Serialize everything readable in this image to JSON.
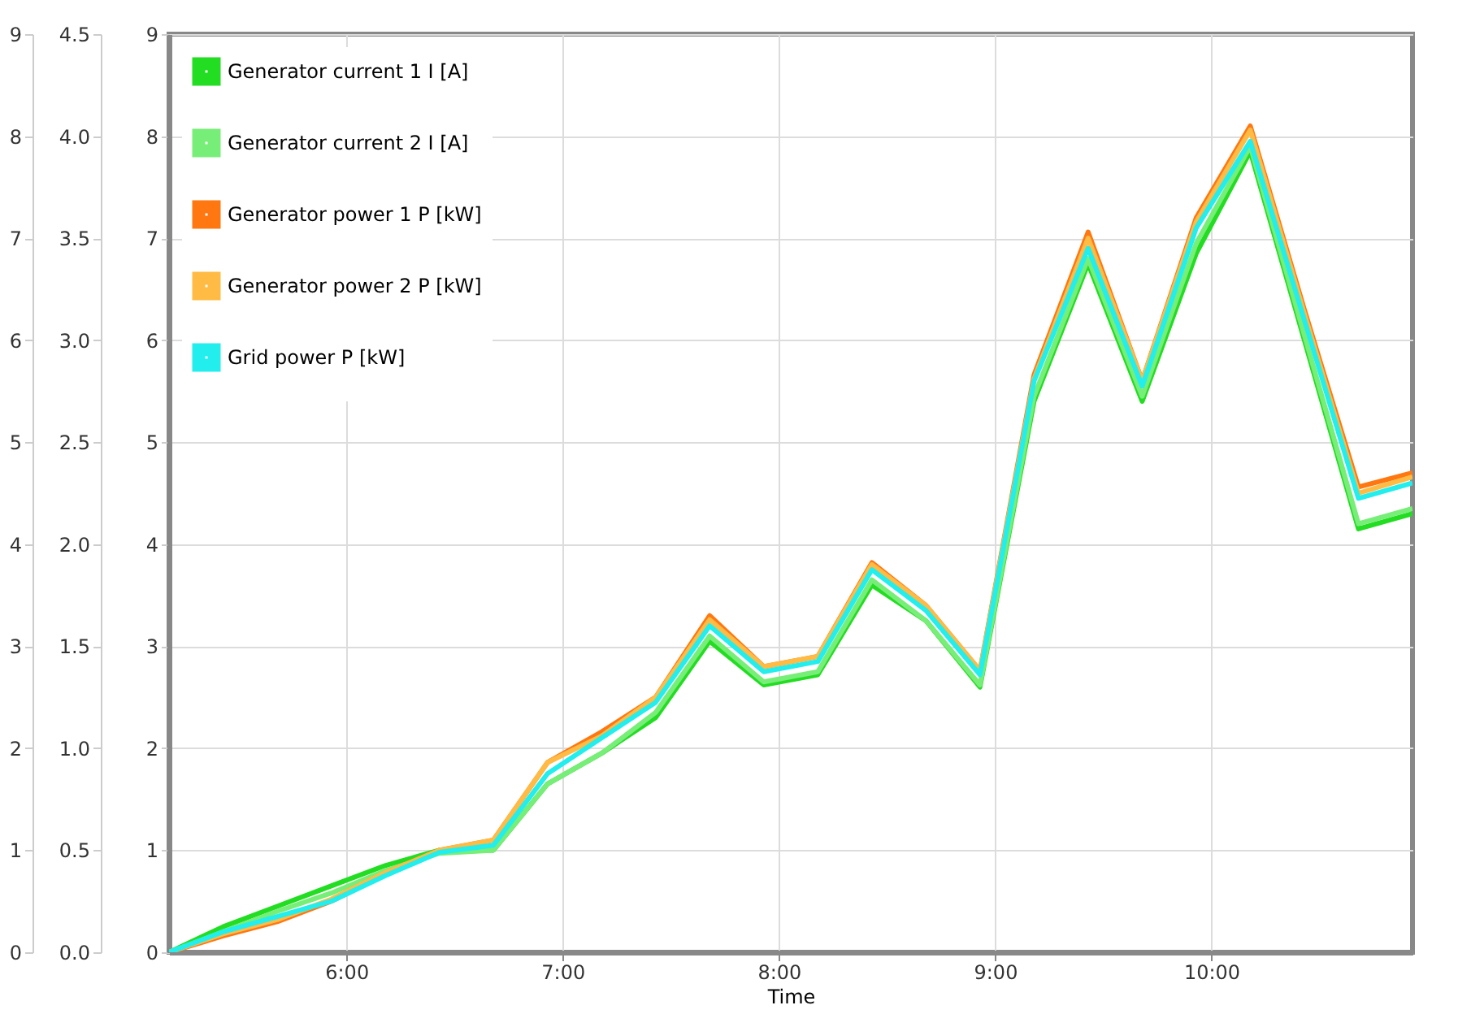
{
  "chart_data": {
    "type": "line",
    "xlabel": "Time",
    "x": [
      5.18,
      5.43,
      5.68,
      5.93,
      6.18,
      6.43,
      6.68,
      6.93,
      7.18,
      7.43,
      7.68,
      7.93,
      8.18,
      8.43,
      8.68,
      8.93,
      9.18,
      9.43,
      9.68,
      9.93,
      10.18,
      10.43,
      10.68,
      10.93
    ],
    "series": [
      {
        "name": "Generator current 1 I [A]",
        "color": "#22dd22",
        "values": [
          0,
          0.25,
          0.45,
          0.65,
          0.85,
          1.0,
          1.0,
          1.65,
          1.95,
          2.3,
          3.05,
          2.62,
          2.72,
          3.6,
          3.25,
          2.6,
          5.4,
          6.75,
          5.4,
          6.85,
          7.85,
          6.0,
          4.15,
          4.3
        ]
      },
      {
        "name": "Generator current 2 I [A]",
        "color": "#77ee77",
        "values": [
          0,
          0.2,
          0.4,
          0.58,
          0.8,
          0.97,
          1.0,
          1.65,
          1.95,
          2.35,
          3.1,
          2.65,
          2.75,
          3.65,
          3.25,
          2.62,
          5.45,
          6.8,
          5.45,
          6.95,
          7.9,
          6.05,
          4.2,
          4.35
        ]
      },
      {
        "name": "Generator power 1 P [kW]",
        "color": "#ff7711",
        "axis": "y2",
        "values": [
          0,
          0.08,
          0.15,
          0.25,
          0.38,
          0.5,
          0.55,
          0.93,
          1.08,
          1.25,
          1.65,
          1.4,
          1.45,
          1.91,
          1.7,
          1.38,
          2.83,
          3.53,
          2.8,
          3.6,
          4.05,
          3.15,
          2.28,
          2.35
        ]
      },
      {
        "name": "Generator power 2 P [kW]",
        "color": "#ffbb44",
        "axis": "y2",
        "values": [
          0,
          0.09,
          0.16,
          0.26,
          0.39,
          0.5,
          0.55,
          0.93,
          1.06,
          1.25,
          1.63,
          1.4,
          1.45,
          1.9,
          1.7,
          1.38,
          2.81,
          3.5,
          2.8,
          3.58,
          4.03,
          3.13,
          2.25,
          2.33
        ]
      },
      {
        "name": "Grid power P [kW]",
        "color": "#22eeee",
        "axis": "y3",
        "values": [
          0,
          0.2,
          0.35,
          0.5,
          0.75,
          0.98,
          1.05,
          1.75,
          2.1,
          2.45,
          3.2,
          2.75,
          2.85,
          3.75,
          3.35,
          2.72,
          5.6,
          6.9,
          5.55,
          7.1,
          7.95,
          6.2,
          4.45,
          4.6
        ]
      }
    ],
    "xlim": [
      5.18,
      10.93
    ],
    "xticks": [
      {
        "value": 6,
        "label": "6:00"
      },
      {
        "value": 7,
        "label": "7:00"
      },
      {
        "value": 8,
        "label": "8:00"
      },
      {
        "value": 9,
        "label": "9:00"
      },
      {
        "value": 10,
        "label": "10:00"
      }
    ],
    "ylim": [
      0,
      9
    ],
    "yticks": [
      0,
      1,
      2,
      3,
      4,
      5,
      6,
      7,
      8,
      9
    ],
    "y2lim": [
      0,
      4.5
    ],
    "y2ticks": [
      {
        "value": 0,
        "label": "0.0"
      },
      0.5,
      {
        "value": 1,
        "label": "1.0"
      },
      1.5,
      {
        "value": 2,
        "label": "2.0"
      },
      2.5,
      {
        "value": 3,
        "label": "3.0"
      },
      3.5,
      {
        "value": 4,
        "label": "4.0"
      },
      4.5
    ],
    "y3lim": [
      0,
      9
    ],
    "y3ticks": [
      0,
      1,
      2,
      3,
      4,
      5,
      6,
      7,
      8,
      9
    ],
    "grid": true,
    "legend": "top left",
    "line_style": "solid",
    "marker": "none"
  }
}
